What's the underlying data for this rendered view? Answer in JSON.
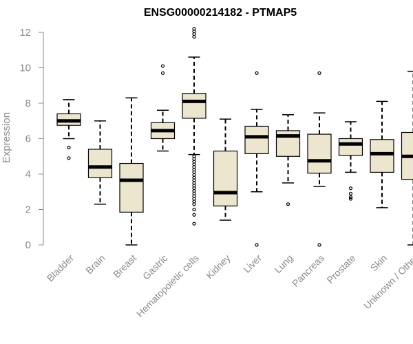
{
  "chart_data": {
    "type": "box",
    "title": "ENSG00000214182 - PTMAP5",
    "xlabel": "",
    "ylabel": "Expression",
    "ylim": [
      0,
      12.3
    ],
    "yticks": [
      0,
      2,
      4,
      6,
      8,
      10,
      12
    ],
    "colors": {
      "box_fill": "#ede6cf",
      "box_stroke": "#000000",
      "axis": "#8a8a8a"
    },
    "categories": [
      "Bladder",
      "Brain",
      "Breast",
      "Gastric",
      "Hematopoietic cells",
      "Kidney",
      "Liver",
      "Lung",
      "Pancreas",
      "Prostate",
      "Skin",
      "Unknown / Other"
    ],
    "boxes": [
      {
        "name": "Bladder",
        "whisker_low": 6.0,
        "q1": 6.75,
        "median": 7.0,
        "q3": 7.4,
        "whisker_high": 8.2,
        "outliers": [
          5.5,
          4.9
        ]
      },
      {
        "name": "Brain",
        "whisker_low": 2.3,
        "q1": 3.8,
        "median": 4.4,
        "q3": 5.4,
        "whisker_high": 7.0,
        "outliers": []
      },
      {
        "name": "Breast",
        "whisker_low": 0.0,
        "q1": 1.85,
        "median": 3.65,
        "q3": 4.6,
        "whisker_high": 8.3,
        "outliers": []
      },
      {
        "name": "Gastric",
        "whisker_low": 5.3,
        "q1": 6.0,
        "median": 6.45,
        "q3": 6.9,
        "whisker_high": 7.6,
        "outliers": [
          9.7,
          10.1
        ]
      },
      {
        "name": "Hematopoietic cells",
        "whisker_low": 5.1,
        "q1": 7.15,
        "median": 8.1,
        "q3": 8.55,
        "whisker_high": 10.6,
        "outliers": [
          12.2,
          12.05,
          11.9,
          11.75,
          5.0,
          4.85,
          4.7,
          4.55,
          4.4,
          4.25,
          4.1,
          3.95,
          3.8,
          3.65,
          3.5,
          3.35,
          3.2,
          3.05,
          2.9,
          2.75,
          2.6,
          2.45,
          2.3,
          2.0,
          1.7,
          1.2
        ]
      },
      {
        "name": "Kidney",
        "whisker_low": 1.4,
        "q1": 2.2,
        "median": 2.95,
        "q3": 5.3,
        "whisker_high": 7.1,
        "outliers": []
      },
      {
        "name": "Liver",
        "whisker_low": 3.0,
        "q1": 5.15,
        "median": 6.1,
        "q3": 6.7,
        "whisker_high": 7.65,
        "outliers": [
          9.7,
          0.0
        ]
      },
      {
        "name": "Lung",
        "whisker_low": 3.5,
        "q1": 5.0,
        "median": 6.15,
        "q3": 6.45,
        "whisker_high": 7.35,
        "outliers": [
          2.3
        ]
      },
      {
        "name": "Pancreas",
        "whisker_low": 3.3,
        "q1": 4.05,
        "median": 4.75,
        "q3": 6.25,
        "whisker_high": 7.45,
        "outliers": [
          9.7,
          0.0
        ]
      },
      {
        "name": "Prostate",
        "whisker_low": 4.1,
        "q1": 5.05,
        "median": 5.7,
        "q3": 6.0,
        "whisker_high": 6.95,
        "outliers": [
          3.2,
          2.9,
          2.7,
          2.6
        ]
      },
      {
        "name": "Skin",
        "whisker_low": 2.1,
        "q1": 4.1,
        "median": 5.15,
        "q3": 5.95,
        "whisker_high": 8.1,
        "outliers": []
      },
      {
        "name": "Unknown / Other",
        "whisker_low": 0.0,
        "q1": 3.7,
        "median": 5.0,
        "q3": 6.35,
        "whisker_high": 9.8,
        "outliers": []
      }
    ]
  }
}
